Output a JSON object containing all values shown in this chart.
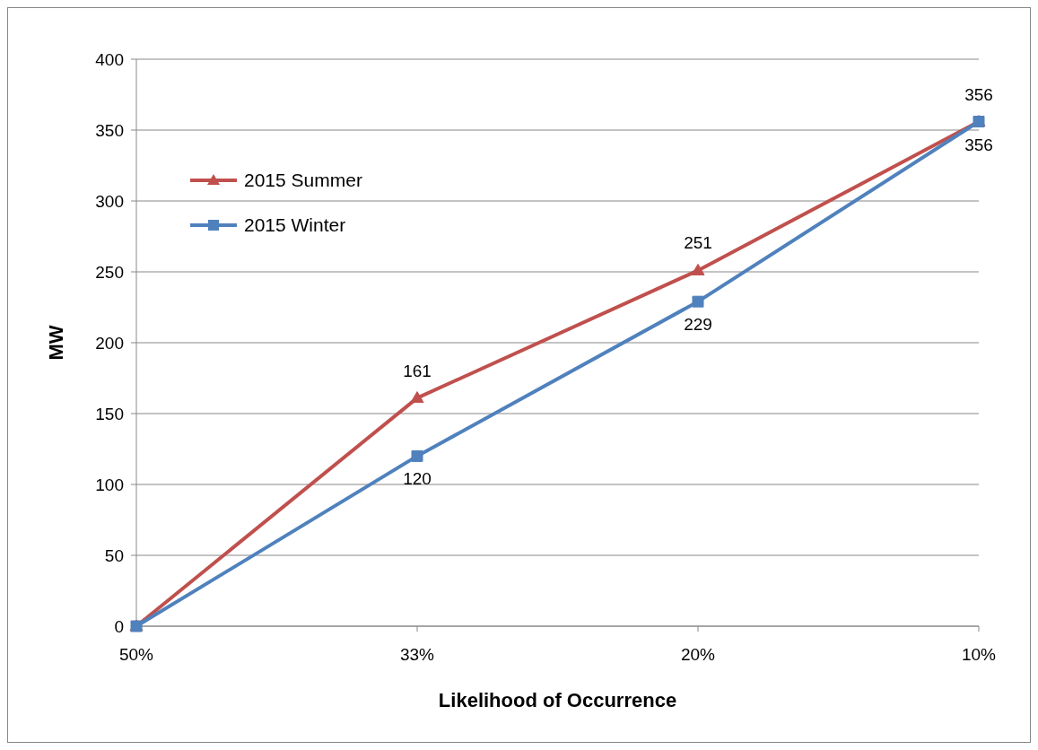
{
  "chart_data": {
    "type": "line",
    "xlabel": "Likelihood of Occurrence",
    "ylabel": "MW",
    "categories": [
      "50%",
      "33%",
      "20%",
      "10%"
    ],
    "series": [
      {
        "name": "2015 Summer",
        "color": "#c0504d",
        "marker": "triangle",
        "values": [
          0,
          161,
          251,
          356
        ],
        "value_labels": [
          null,
          "161",
          "251",
          "356"
        ]
      },
      {
        "name": "2015 Winter",
        "color": "#4f81bd",
        "marker": "square",
        "values": [
          0,
          120,
          229,
          356
        ],
        "value_labels": [
          null,
          "120",
          "229",
          "356"
        ]
      }
    ],
    "ylim": [
      0,
      400
    ],
    "yticks": [
      0,
      50,
      100,
      150,
      200,
      250,
      300,
      350,
      400
    ],
    "grid": "y",
    "legend": "top left"
  }
}
